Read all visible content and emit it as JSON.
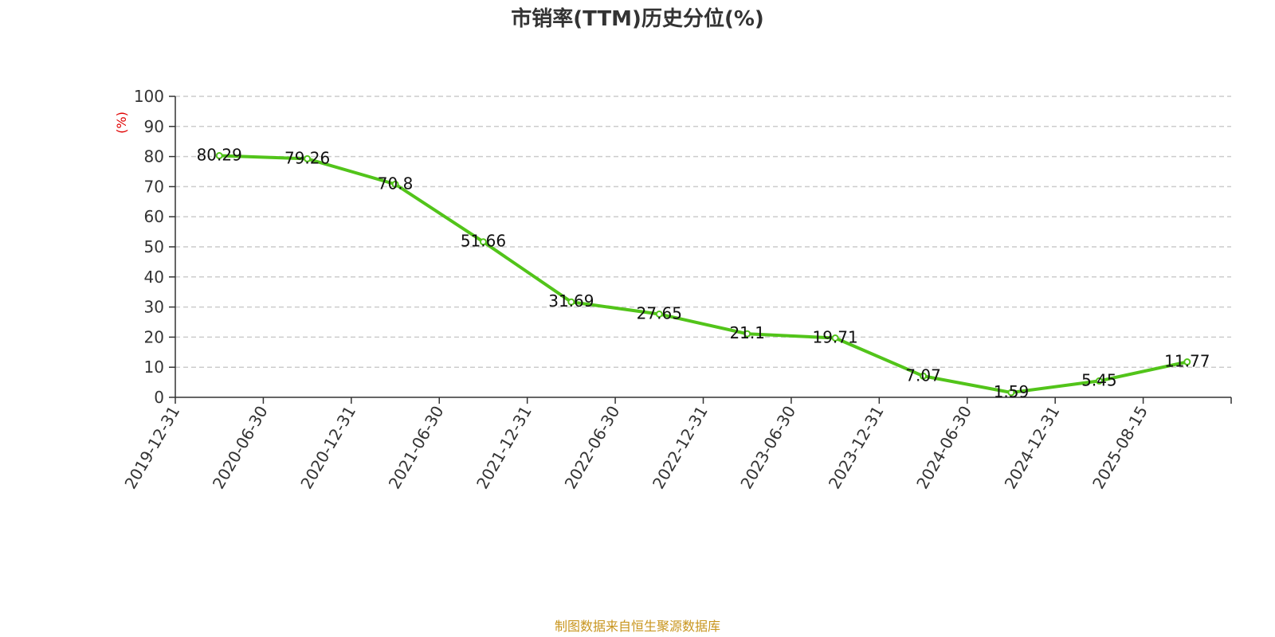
{
  "chart_data": {
    "type": "line",
    "title": "市销率(TTM)历史分位(%)",
    "ylabel": "(%)",
    "xlabel": "",
    "ylim": [
      0,
      100
    ],
    "yticks": [
      0,
      10,
      20,
      30,
      40,
      50,
      60,
      70,
      80,
      90,
      100
    ],
    "grid": true,
    "categories": [
      "2019-12-31",
      "2020-06-30",
      "2020-12-31",
      "2021-06-30",
      "2021-12-31",
      "2022-06-30",
      "2022-12-31",
      "2023-06-30",
      "2023-12-31",
      "2024-06-30",
      "2024-12-31",
      "2025-08-15"
    ],
    "series": [
      {
        "values": [
          80.29,
          79.26,
          70.8,
          51.66,
          31.69,
          27.65,
          21.1,
          19.71,
          7.07,
          1.59,
          5.45,
          11.77
        ],
        "labels": [
          "80.29",
          "79.26",
          "70.8",
          "51.66",
          "31.69",
          "27.65",
          "21.1",
          "19.71",
          "7.07",
          "1.59",
          "5.45",
          "11.77"
        ],
        "color": "#52c41a"
      }
    ],
    "source": "制图数据来自恒生聚源数据库"
  },
  "colors": {
    "line": "#52c41a",
    "ylabel": "#e00000",
    "source": "#c8951e",
    "grid": "#cccccc",
    "axis": "#333333"
  }
}
